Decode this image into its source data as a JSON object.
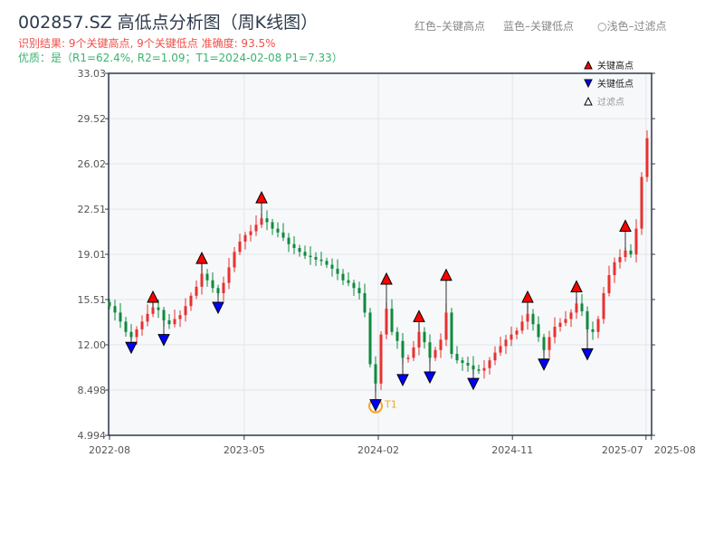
{
  "header": {
    "title": "002857.SZ 高低点分析图（周K线图）",
    "result": "识别结果: 9个关键高点, 9个关键低点  准确度: 93.5%",
    "quality": "优质：是（R1=62.4%, R2=1.09；T1=2024-02-08 P1=7.33）",
    "hint_red": "红色–关键高点",
    "hint_blue": "蓝色–关键低点",
    "hint_light": "○浅色–过滤点"
  },
  "colors": {
    "up": "#e8312f",
    "down": "#0f8a3c",
    "high": "#ff0000",
    "low": "#0000ff",
    "t1": "#f5a623"
  },
  "chart_data": {
    "type": "candlestick",
    "title": "002857.SZ 高低点分析图（周K线图）",
    "ylim": [
      4.994,
      33.03
    ],
    "yticks": [
      "4.994",
      "8.498",
      "12.00",
      "15.51",
      "19.01",
      "22.51",
      "26.02",
      "29.52",
      "33.03"
    ],
    "xticks": [
      {
        "label": "2022-08",
        "i": 0
      },
      {
        "label": "2023-05",
        "i": 24.8
      },
      {
        "label": "2024-02",
        "i": 49.5
      },
      {
        "label": "2024-11",
        "i": 74.2
      },
      {
        "label": "2025-07",
        "i": 98.8
      },
      {
        "label": "2025-08",
        "i": 99.8
      }
    ],
    "closes": [
      15.0,
      14.5,
      13.8,
      13.0,
      12.6,
      13.2,
      13.8,
      14.4,
      14.9,
      14.7,
      13.9,
      13.6,
      14.0,
      14.3,
      15.0,
      15.8,
      16.5,
      17.5,
      17.0,
      16.4,
      16.0,
      16.8,
      18.0,
      19.2,
      20.0,
      20.5,
      20.8,
      21.3,
      21.8,
      21.5,
      21.0,
      20.7,
      20.3,
      19.8,
      19.5,
      19.2,
      18.9,
      18.8,
      18.6,
      18.5,
      18.2,
      17.9,
      17.5,
      17.0,
      16.8,
      16.4,
      16.0,
      14.5,
      10.5,
      9.0,
      12.8,
      14.8,
      13.0,
      12.3,
      11.0,
      11.0,
      11.8,
      13.0,
      12.2,
      11.0,
      11.6,
      12.4,
      14.5,
      11.3,
      10.8,
      10.6,
      10.4,
      10.1,
      10.0,
      10.2,
      10.8,
      11.4,
      11.9,
      12.4,
      12.8,
      13.1,
      13.8,
      14.4,
      13.6,
      12.6,
      11.6,
      12.6,
      13.4,
      13.7,
      14.0,
      14.5,
      15.2,
      14.6,
      13.2,
      13.0,
      14.0,
      16.0,
      17.4,
      18.4,
      18.8,
      19.3,
      19.0,
      21.0,
      25.0,
      28.0
    ],
    "key_highs": [
      {
        "i": 8,
        "p": 15.3
      },
      {
        "i": 17,
        "p": 18.3
      },
      {
        "i": 28,
        "p": 23.0
      },
      {
        "i": 51,
        "p": 16.7
      },
      {
        "i": 57,
        "p": 13.8
      },
      {
        "i": 62,
        "p": 17.0
      },
      {
        "i": 77,
        "p": 15.3
      },
      {
        "i": 86,
        "p": 16.1
      },
      {
        "i": 95,
        "p": 20.8
      }
    ],
    "key_lows": [
      {
        "i": 4,
        "p": 12.2
      },
      {
        "i": 10,
        "p": 12.8
      },
      {
        "i": 20,
        "p": 15.3
      },
      {
        "i": 49,
        "p": 7.33,
        "label": "T1"
      },
      {
        "i": 54,
        "p": 9.7
      },
      {
        "i": 59,
        "p": 9.9
      },
      {
        "i": 67,
        "p": 9.4
      },
      {
        "i": 80,
        "p": 10.9
      },
      {
        "i": 88,
        "p": 11.7
      }
    ],
    "legend": {
      "position": "top-right",
      "items": [
        "关键高点",
        "关键低点",
        "过滤点"
      ]
    }
  }
}
